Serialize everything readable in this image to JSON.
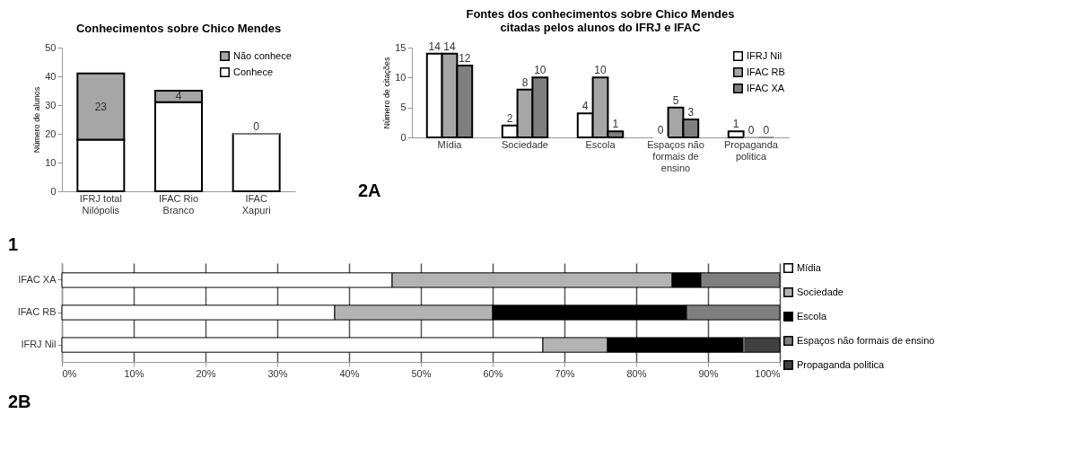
{
  "chart_data": [
    {
      "type": "bar",
      "title": "Conhecimentos sobre Chico Mendes",
      "ylabel": "Número de alunos",
      "categories": [
        "IFRJ total Nilópolis",
        "IFAC Rio Branco",
        "IFAC Xapuri"
      ],
      "stacked": true,
      "ylim": [
        0,
        50
      ],
      "yticks": [
        0,
        10,
        20,
        30,
        40,
        50
      ],
      "legend": "top right",
      "annotations": [
        "1"
      ],
      "series": [
        {
          "name": "Conhece",
          "color": "#ffffff",
          "values": [
            18,
            31,
            20
          ]
        },
        {
          "name": "Não conhece",
          "color": "#a6a6a6",
          "values": [
            23,
            4,
            0
          ],
          "value_labels": [
            "23",
            "4",
            "0"
          ]
        }
      ]
    },
    {
      "type": "bar",
      "title": "Fontes dos conhecimentos sobre Chico Mendes citadas pelos alunos do IFRJ e IFAC",
      "ylabel": "Número de citações",
      "categories": [
        "Mídia",
        "Sociedade",
        "Escola",
        "Espaços não formais de ensino",
        "Propaganda politica"
      ],
      "ylim": [
        0,
        15
      ],
      "yticks": [
        0,
        5,
        10,
        15
      ],
      "legend": "top right",
      "data_labels": true,
      "annotations": [
        "2A"
      ],
      "series": [
        {
          "name": "IFRJ Nil",
          "color": "#ffffff",
          "values": [
            14,
            2,
            4,
            0,
            1
          ]
        },
        {
          "name": "IFAC RB",
          "color": "#a6a6a6",
          "values": [
            14,
            8,
            10,
            5,
            0
          ]
        },
        {
          "name": "IFAC XA",
          "color": "#7f7f7f",
          "values": [
            12,
            10,
            1,
            3,
            0
          ]
        }
      ]
    },
    {
      "type": "bar",
      "orientation": "horizontal",
      "stacked": true,
      "categories": [
        "IFAC XA",
        "IFAC RB",
        "IFRJ Nil"
      ],
      "xlim": [
        0,
        100
      ],
      "xticks": [
        {
          "value": 0,
          "label": "0%"
        },
        {
          "value": 10,
          "label": "10%"
        },
        {
          "value": 20,
          "label": "20%"
        },
        {
          "value": 30,
          "label": "30%"
        },
        {
          "value": 40,
          "label": "40%"
        },
        {
          "value": 50,
          "label": "50%"
        },
        {
          "value": 60,
          "label": "60%"
        },
        {
          "value": 70,
          "label": "70%"
        },
        {
          "value": 80,
          "label": "80%"
        },
        {
          "value": 90,
          "label": "90%"
        },
        {
          "value": 100,
          "label": "100%"
        }
      ],
      "grid": "x",
      "legend": "right",
      "annotations": [
        "2B"
      ],
      "series": [
        {
          "name": "Mídia",
          "color": "#ffffff",
          "values": [
            46,
            38,
            67
          ]
        },
        {
          "name": "Sociedade",
          "color": "#b3b3b3",
          "values": [
            39,
            22,
            9
          ]
        },
        {
          "name": "Escola",
          "color": "#000000",
          "values": [
            4,
            27,
            19
          ]
        },
        {
          "name": "Espaços não formais de ensino",
          "color": "#7f7f7f",
          "values": [
            11,
            13,
            0
          ]
        },
        {
          "name": "Propaganda politica",
          "color": "#404040",
          "values": [
            0,
            0,
            5
          ]
        }
      ]
    }
  ]
}
